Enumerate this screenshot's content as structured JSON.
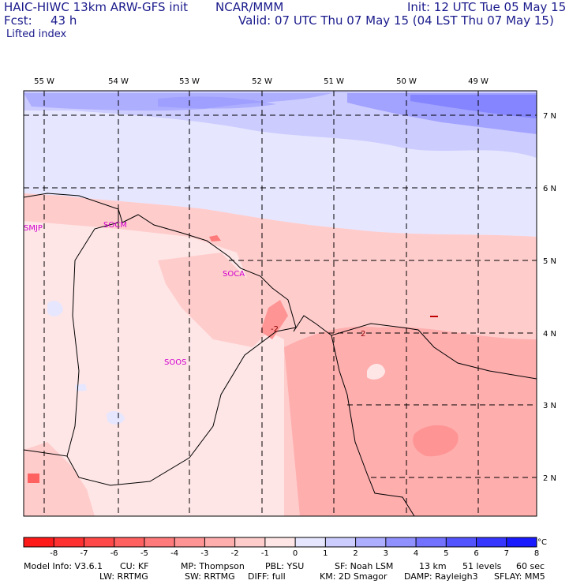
{
  "header": {
    "model": "HAIC-HIWC 13km ARW-GFS init",
    "org": "NCAR/MMM",
    "init": "Init: 12 UTC Tue 05 May 15",
    "fcst_label": "Fcst:",
    "fcst_value": "43 h",
    "valid": "Valid: 07 UTC Thu 07 May 15 (04 LST Thu 07 May 15)",
    "field": "Lifted index"
  },
  "map": {
    "lon_labels": [
      "55 W",
      "54 W",
      "53 W",
      "52 W",
      "51 W",
      "50 W",
      "49 W"
    ],
    "lat_labels": [
      "7 N",
      "6 N",
      "5 N",
      "4 N",
      "3 N",
      "2 N"
    ],
    "stations": [
      "SMJP",
      "SOCM",
      "SOCA",
      "SOOS"
    ],
    "contour_labels": [
      "-2",
      "2"
    ]
  },
  "colorbar": {
    "ticks": [
      "-8",
      "-7",
      "-6",
      "-5",
      "-4",
      "-3",
      "-2",
      "-1",
      "0",
      "1",
      "2",
      "3",
      "4",
      "5",
      "6",
      "7",
      "8"
    ],
    "unit": "°C",
    "colors": [
      "#ff1a1a",
      "#ff3030",
      "#ff4848",
      "#ff6060",
      "#ff7a7a",
      "#ff9494",
      "#ffaeae",
      "#ffcccc",
      "#ffe6e6",
      "#e6e6ff",
      "#ccccff",
      "#aeaeff",
      "#9090ff",
      "#7272ff",
      "#5454ff",
      "#3636ff",
      "#1a1aff"
    ]
  },
  "footer": {
    "line1": [
      "Model Info: V3.6.1",
      "CU: KF",
      "MP: Thompson",
      "PBL: YSU",
      "SF: Noah LSM",
      "13 km",
      "51 levels",
      "60 sec"
    ],
    "line2": [
      "LW: RRTMG",
      "SW: RRTMG",
      "DIFF: full",
      "KM: 2D Smagor",
      "DAMP: Rayleigh3",
      "SFLAY: MM5"
    ]
  }
}
